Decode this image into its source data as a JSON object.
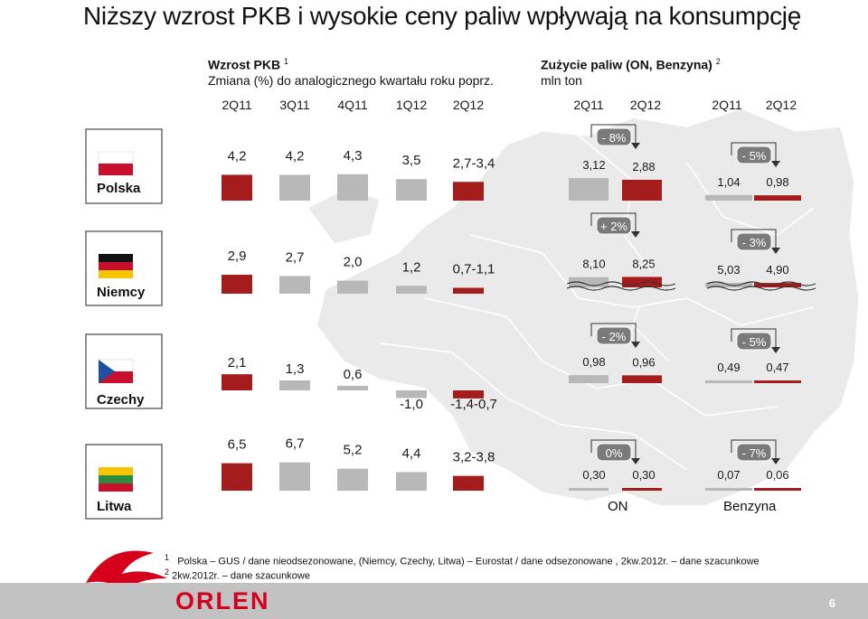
{
  "title": "Niższy wzrost PKB i wysokie ceny paliw wpływają na konsumpcję",
  "gdp_header": {
    "title": "Wzrost PKB",
    "title_sup": "1",
    "subtitle": "Zmiana (%) do analogicznego kwartału roku poprz."
  },
  "fuel_header": {
    "title": "Zużycie paliw (ON, Benzyna)",
    "title_sup": "2",
    "subtitle": "mln ton"
  },
  "countries": [
    "Polska",
    "Niemcy",
    "Czechy",
    "Litwa"
  ],
  "fuel_group_labels": [
    "ON",
    "Benzyna"
  ],
  "footnotes": [
    {
      "num": "1",
      "text": "Polska – GUS / dane nieodsezonowane, (Niemcy, Czechy, Litwa) – Eurostat / dane odsezonowane , 2kw.2012r. – dane szacunkowe"
    },
    {
      "num": "2",
      "text": "2kw.2012r. – dane szacunkowe"
    }
  ],
  "logo_text": "ORLEN",
  "page_number": "6",
  "colors": {
    "highlight": "#a51c1c",
    "base": "#b8b8b8",
    "flag_red": "#c8102e"
  },
  "chart_data": [
    {
      "type": "bar",
      "name": "gdp",
      "categories": [
        "2Q11",
        "3Q11",
        "4Q11",
        "1Q12",
        "2Q12"
      ],
      "rows": [
        {
          "country": "Polska",
          "values": [
            4.2,
            4.2,
            4.3,
            3.5,
            3.05
          ],
          "labels": [
            "4,2",
            "4,2",
            "4,3",
            "3,5",
            "2,7-3,4"
          ]
        },
        {
          "country": "Niemcy",
          "values": [
            2.9,
            2.7,
            2.0,
            1.2,
            0.9
          ],
          "labels": [
            "2,9",
            "2,7",
            "2,0",
            "1,2",
            "0,7-1,1"
          ]
        },
        {
          "country": "Czechy",
          "values": [
            2.1,
            1.3,
            0.6,
            -1.0,
            -1.05
          ],
          "labels": [
            "2,1",
            "1,3",
            "0,6",
            "-1,0",
            "-1,4-0,7"
          ]
        },
        {
          "country": "Litwa",
          "values": [
            6.5,
            6.7,
            5.2,
            4.4,
            3.5
          ],
          "labels": [
            "6,5",
            "6,7",
            "5,2",
            "4,4",
            "3,2-3,8"
          ]
        }
      ]
    },
    {
      "type": "bar",
      "name": "fuel",
      "groups": [
        {
          "label": "ON",
          "categories": [
            "2Q11",
            "2Q12"
          ]
        },
        {
          "label": "Benzyna",
          "categories": [
            "2Q11",
            "2Q12"
          ]
        }
      ],
      "rows": [
        {
          "country": "Polska",
          "on": {
            "values": [
              3.12,
              2.88
            ],
            "labels": [
              "3,12",
              "2,88"
            ],
            "change": "- 8%"
          },
          "benzyna": {
            "values": [
              1.04,
              0.98
            ],
            "labels": [
              "1,04",
              "0,98"
            ],
            "change": "- 5%"
          }
        },
        {
          "country": "Niemcy",
          "on": {
            "values": [
              8.1,
              8.25
            ],
            "labels": [
              "8,10",
              "8,25"
            ],
            "change": "+ 2%"
          },
          "benzyna": {
            "values": [
              5.03,
              4.9
            ],
            "labels": [
              "5,03",
              "4,90"
            ],
            "change": "- 3%"
          }
        },
        {
          "country": "Czechy",
          "on": {
            "values": [
              0.98,
              0.96
            ],
            "labels": [
              "0,98",
              "0,96"
            ],
            "change": "- 2%"
          },
          "benzyna": {
            "values": [
              0.49,
              0.47
            ],
            "labels": [
              "0,49",
              "0,47"
            ],
            "change": "- 5%"
          }
        },
        {
          "country": "Litwa",
          "on": {
            "values": [
              0.3,
              0.3
            ],
            "labels": [
              "0,30",
              "0,30"
            ],
            "change": "0%"
          },
          "benzyna": {
            "values": [
              0.07,
              0.06
            ],
            "labels": [
              "0,07",
              "0,06"
            ],
            "change": "- 7%"
          }
        }
      ]
    }
  ]
}
